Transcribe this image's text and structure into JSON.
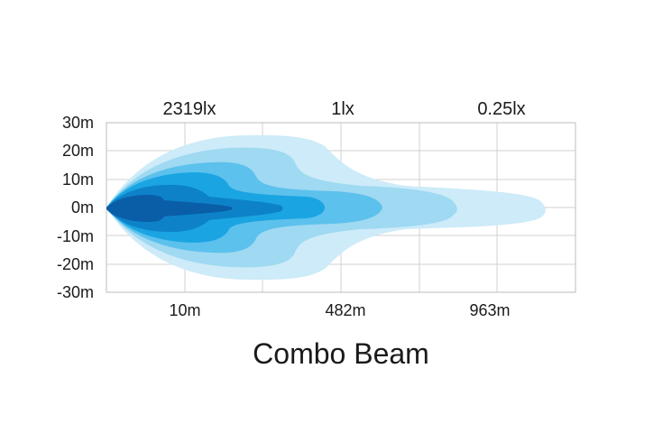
{
  "chart_data": {
    "type": "area",
    "title": "Combo Beam",
    "ylabel": "",
    "xlabel": "",
    "yticks": [
      "30m",
      "20m",
      "10m",
      "0m",
      "-10m",
      "-20m",
      "-30m"
    ],
    "ylim": [
      -30,
      30
    ],
    "x_bottom_labels": [
      "10m",
      "482m",
      "963m"
    ],
    "x_top_labels": [
      "2319lx",
      "1lx",
      "0.25lx"
    ],
    "grid": true,
    "colors": {
      "zone1": "#cdebf8",
      "zone2": "#9fd9f2",
      "zone3": "#5cc1ec",
      "zone4": "#1aa5e2",
      "zone5": "#0d82c9",
      "core": "#0a5ea8",
      "grid": "#cccccc",
      "axis": "#999999"
    }
  }
}
